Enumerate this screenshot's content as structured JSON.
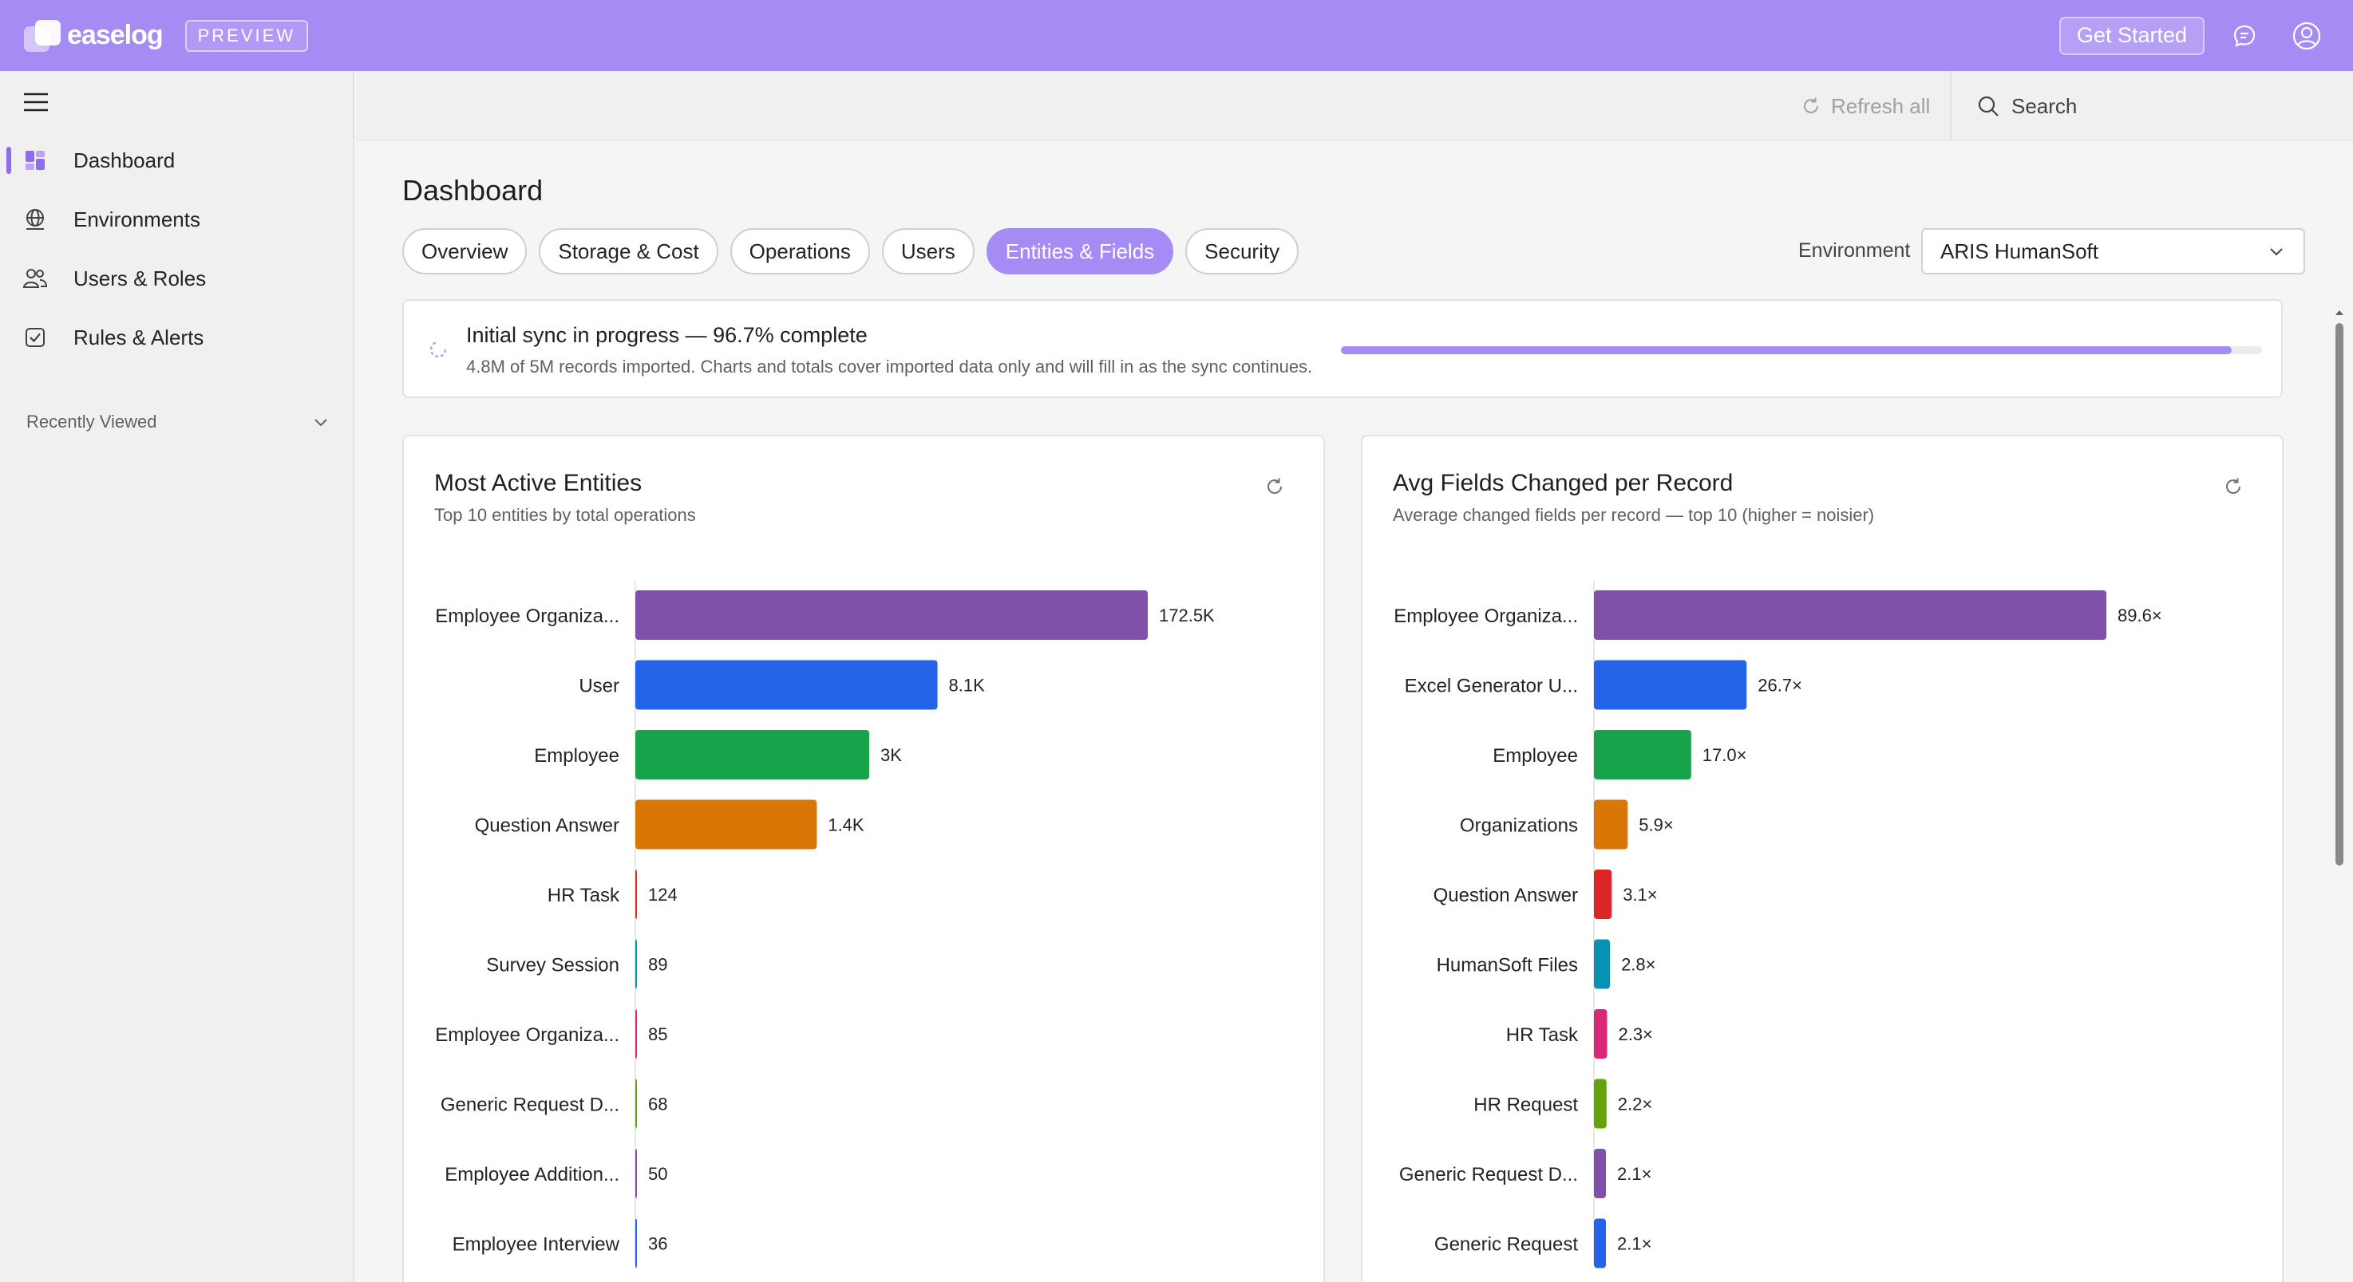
{
  "app": {
    "logo_text": "easelog",
    "badge": "PREVIEW"
  },
  "topbar": {
    "get_started": "Get Started"
  },
  "sidebar": {
    "items": [
      {
        "label": "Dashboard",
        "icon": "dashboard-icon",
        "active": true
      },
      {
        "label": "Environments",
        "icon": "globe-icon",
        "active": false
      },
      {
        "label": "Users & Roles",
        "icon": "users-icon",
        "active": false
      },
      {
        "label": "Rules & Alerts",
        "icon": "checkbox-icon",
        "active": false
      }
    ],
    "recently_viewed": "Recently Viewed"
  },
  "subbar": {
    "refresh_all": "Refresh all",
    "search_placeholder": "Search"
  },
  "page": {
    "title": "Dashboard",
    "tabs": [
      {
        "label": "Overview",
        "active": false
      },
      {
        "label": "Storage & Cost",
        "active": false
      },
      {
        "label": "Operations",
        "active": false
      },
      {
        "label": "Users",
        "active": false
      },
      {
        "label": "Entities & Fields",
        "active": true
      },
      {
        "label": "Security",
        "active": false
      }
    ],
    "environment_label": "Environment",
    "environment_value": "ARIS HumanSoft"
  },
  "sync": {
    "title": "Initial sync in progress — 96.7% complete",
    "subtitle": "4.8M of 5M records imported. Charts and totals cover imported data only and will fill in as the sync continues.",
    "progress": 0.967
  },
  "colors": {
    "accent": "#a58cf5",
    "bars": [
      "#7f51ab",
      "#2563e8",
      "#17a34a",
      "#d97706",
      "#dc2626",
      "#0891b2",
      "#db2777",
      "#65a30d",
      "#7f51ab",
      "#2563e8"
    ]
  },
  "chart_data": [
    {
      "type": "bar",
      "orientation": "horizontal",
      "title": "Most Active Entities",
      "subtitle": "Top 10 entities by total operations",
      "categories": [
        "Employee Organiza...",
        "User",
        "Employee",
        "Question Answer",
        "HR Task",
        "Survey Session",
        "Employee Organiza...",
        "Generic Request D...",
        "Employee Addition...",
        "Employee Interview"
      ],
      "values": [
        172500,
        8100,
        3000,
        1400,
        124,
        89,
        85,
        68,
        50,
        36
      ],
      "value_labels": [
        "172.5K",
        "8.1K",
        "3K",
        "1.4K",
        "124",
        "89",
        "85",
        "68",
        "50",
        "36"
      ],
      "scale": "log"
    },
    {
      "type": "bar",
      "orientation": "horizontal",
      "title": "Avg Fields Changed per Record",
      "subtitle": "Average changed fields per record — top 10 (higher = noisier)",
      "categories": [
        "Employee Organiza...",
        "Excel Generator U...",
        "Employee",
        "Organizations",
        "Question Answer",
        "HumanSoft Files",
        "HR Task",
        "HR Request",
        "Generic Request D...",
        "Generic Request"
      ],
      "values": [
        89.6,
        26.7,
        17.0,
        5.9,
        3.1,
        2.8,
        2.3,
        2.2,
        2.1,
        2.1
      ],
      "value_labels": [
        "89.6×",
        "26.7×",
        "17.0×",
        "5.9×",
        "3.1×",
        "2.8×",
        "2.3×",
        "2.2×",
        "2.1×",
        "2.1×"
      ],
      "scale": "linear"
    }
  ]
}
